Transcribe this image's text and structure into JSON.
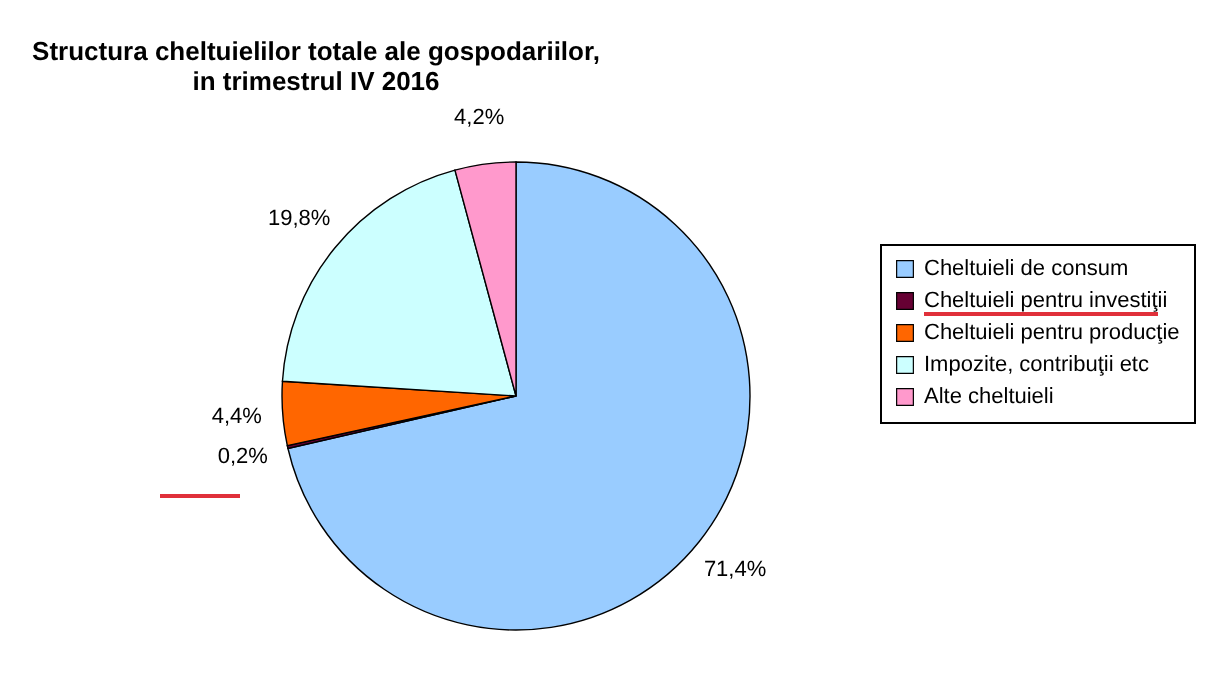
{
  "chart_data": {
    "type": "pie",
    "title": "Structura cheltuielilor totale ale gospodariilor,\nin trimestrul IV 2016",
    "categories": [
      "Cheltuieli de consum",
      "Cheltuieli pentru investiţii",
      "Cheltuieli pentru producţie",
      "Impozite, contribuţii etc",
      "Alte cheltuieli"
    ],
    "values": [
      71.4,
      0.2,
      4.4,
      19.8,
      4.2
    ],
    "colors": [
      "#99ccff",
      "#660033",
      "#ff6600",
      "#ccffff",
      "#ff99cc"
    ],
    "value_labels": [
      "71,4%",
      "0,2%",
      "4,4%",
      "19,8%",
      "4,2%"
    ],
    "legend": "right"
  }
}
